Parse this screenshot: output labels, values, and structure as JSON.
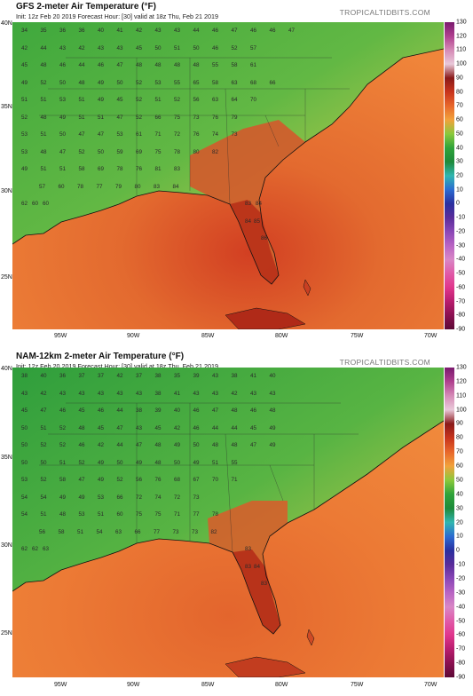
{
  "panels": [
    {
      "title": "GFS 2-meter Air Temperature (°F)",
      "subtitle": "Init: 12z Feb 20 2019   Forecast Hour: [30]   valid at 18z Thu, Feb 21 2019",
      "brand": "TROPICALTIDBITS.COM",
      "lat_labels": [
        "40N",
        "35N",
        "30N",
        "25N"
      ],
      "lon_labels": [
        "95W",
        "90W",
        "85W",
        "80W",
        "75W",
        "70W"
      ],
      "temp_rows": [
        [
          "34",
          "35",
          "36",
          "36",
          "40",
          "41",
          "42",
          "43",
          "43",
          "44",
          "46",
          "47",
          "46",
          "46",
          "47"
        ],
        [
          "42",
          "44",
          "43",
          "42",
          "43",
          "43",
          "45",
          "50",
          "51",
          "50",
          "46",
          "52",
          "57"
        ],
        [
          "45",
          "48",
          "46",
          "44",
          "46",
          "47",
          "48",
          "48",
          "48",
          "48",
          "55",
          "58",
          "61"
        ],
        [
          "49",
          "52",
          "50",
          "48",
          "49",
          "50",
          "52",
          "53",
          "55",
          "65",
          "58",
          "63",
          "68",
          "66"
        ],
        [
          "51",
          "51",
          "53",
          "51",
          "49",
          "45",
          "52",
          "51",
          "52",
          "56",
          "63",
          "64",
          "70"
        ],
        [
          "52",
          "48",
          "49",
          "51",
          "51",
          "47",
          "52",
          "66",
          "75",
          "73",
          "76",
          "79"
        ],
        [
          "53",
          "51",
          "50",
          "47",
          "47",
          "53",
          "61",
          "71",
          "72",
          "76",
          "74",
          "73"
        ],
        [
          "53",
          "48",
          "47",
          "52",
          "50",
          "59",
          "69",
          "75",
          "78",
          "80",
          "82"
        ],
        [
          "49",
          "51",
          "51",
          "58",
          "69",
          "78",
          "76",
          "81",
          "83"
        ],
        [
          "57",
          "60",
          "78",
          "77",
          "79",
          "80",
          "83",
          "84"
        ],
        [
          "62",
          "60",
          "60",
          "83",
          "84"
        ],
        [
          "84",
          "85"
        ],
        [
          "86"
        ]
      ]
    },
    {
      "title": "NAM-12km 2-meter Air Temperature (°F)",
      "subtitle": "Init: 12z Feb 20 2019   Forecast Hour: [30]   valid at 18z Thu, Feb 21 2019",
      "brand": "TROPICALTIDBITS.COM",
      "lat_labels": [
        "40N",
        "35N",
        "30N",
        "25N"
      ],
      "lon_labels": [
        "95W",
        "90W",
        "85W",
        "80W",
        "75W",
        "70W"
      ],
      "temp_rows": [
        [
          "38",
          "40",
          "36",
          "37",
          "37",
          "42",
          "37",
          "38",
          "35",
          "39",
          "43",
          "38",
          "41",
          "40"
        ],
        [
          "43",
          "42",
          "43",
          "43",
          "43",
          "43",
          "43",
          "38",
          "41",
          "43",
          "43",
          "42",
          "43",
          "43"
        ],
        [
          "45",
          "47",
          "46",
          "45",
          "46",
          "44",
          "38",
          "39",
          "40",
          "46",
          "47",
          "48",
          "46",
          "48"
        ],
        [
          "50",
          "51",
          "52",
          "48",
          "45",
          "47",
          "43",
          "45",
          "42",
          "46",
          "44",
          "44",
          "45",
          "49"
        ],
        [
          "50",
          "52",
          "52",
          "46",
          "42",
          "44",
          "47",
          "48",
          "49",
          "50",
          "48",
          "48",
          "47",
          "49"
        ],
        [
          "50",
          "50",
          "51",
          "52",
          "49",
          "50",
          "49",
          "48",
          "50",
          "49",
          "51",
          "55"
        ],
        [
          "53",
          "52",
          "58",
          "47",
          "49",
          "52",
          "56",
          "76",
          "68",
          "67",
          "70",
          "71"
        ],
        [
          "54",
          "54",
          "49",
          "49",
          "53",
          "66",
          "72",
          "74",
          "72",
          "73"
        ],
        [
          "54",
          "51",
          "48",
          "53",
          "51",
          "60",
          "75",
          "75",
          "71",
          "77",
          "78"
        ],
        [
          "56",
          "58",
          "51",
          "54",
          "63",
          "66",
          "77",
          "73",
          "73",
          "82"
        ],
        [
          "62",
          "62",
          "63",
          "83"
        ],
        [
          "83",
          "84"
        ],
        [
          "83"
        ]
      ]
    }
  ],
  "colorbar": {
    "ticks": [
      "130",
      "120",
      "110",
      "100",
      "90",
      "80",
      "70",
      "60",
      "50",
      "40",
      "30",
      "20",
      "10",
      "0",
      "-10",
      "-20",
      "-30",
      "-40",
      "-50",
      "-60",
      "-70",
      "-80",
      "-90"
    ],
    "colors": [
      "#7a1a6e",
      "#b0408f",
      "#d58ab6",
      "#e9c9d9",
      "#8a1a1a",
      "#c8341c",
      "#e8672b",
      "#f1a23b",
      "#8ac93c",
      "#2fa33a",
      "#1d8a3a",
      "#31b6b0",
      "#2c6bd1",
      "#2a2f9f",
      "#5a2c9a",
      "#8a47b6",
      "#b964c3",
      "#d987c6",
      "#e05aa8",
      "#e0368c",
      "#b81d6e",
      "#8a1050",
      "#5d0a36"
    ]
  }
}
